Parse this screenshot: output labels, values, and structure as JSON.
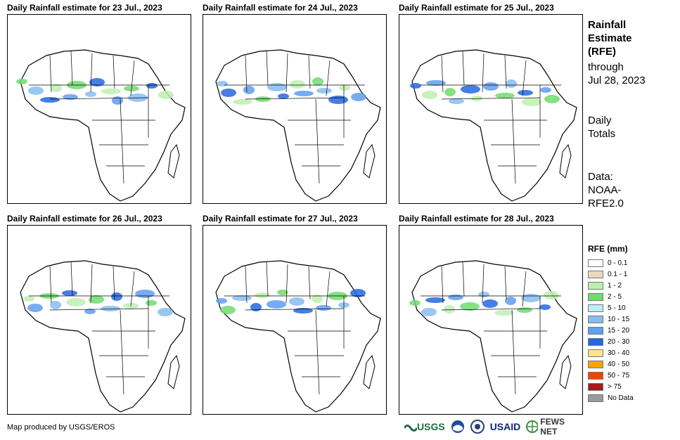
{
  "panels": [
    {
      "title": "Daily Rainfall estimate for 23 Jul., 2023"
    },
    {
      "title": "Daily Rainfall estimate for 24 Jul., 2023"
    },
    {
      "title": "Daily Rainfall estimate for 25 Jul., 2023"
    },
    {
      "title": "Daily Rainfall estimate for 26 Jul., 2023"
    },
    {
      "title": "Daily Rainfall estimate for 27 Jul., 2023"
    },
    {
      "title": "Daily Rainfall estimate for 28 Jul., 2023"
    }
  ],
  "side": {
    "title_lines": [
      "Rainfall",
      "Estimate",
      "(RFE)"
    ],
    "through_lines": [
      "through",
      "Jul 28, 2023"
    ],
    "totals_lines": [
      "Daily",
      "Totals"
    ],
    "data_lines": [
      "Data:",
      "NOAA-",
      "RFE2.0"
    ]
  },
  "legend": {
    "title": "RFE (mm)",
    "items": [
      {
        "label": "0 - 0.1",
        "color": "#ffffff"
      },
      {
        "label": "0.1 - 1",
        "color": "#ead9bf"
      },
      {
        "label": "1 - 2",
        "color": "#bdf0b0"
      },
      {
        "label": "2 - 5",
        "color": "#6fdc6f"
      },
      {
        "label": "5 - 10",
        "color": "#b9eef6"
      },
      {
        "label": "10 - 15",
        "color": "#86bdf0"
      },
      {
        "label": "15 - 20",
        "color": "#5f9ef0"
      },
      {
        "label": "20 - 30",
        "color": "#2567e0"
      },
      {
        "label": "30 - 40",
        "color": "#fde48a"
      },
      {
        "label": "40 - 50",
        "color": "#f5a400"
      },
      {
        "label": "50 - 75",
        "color": "#f04500"
      },
      {
        "label": "> 75",
        "color": "#a51c1c"
      },
      {
        "label": "No Data",
        "color": "#9a9a9a"
      }
    ]
  },
  "credit": "Map produced by USGS/EROS",
  "logos": {
    "usgs": "USGS",
    "usaid": "USAID",
    "fews": "FEWS NET"
  }
}
